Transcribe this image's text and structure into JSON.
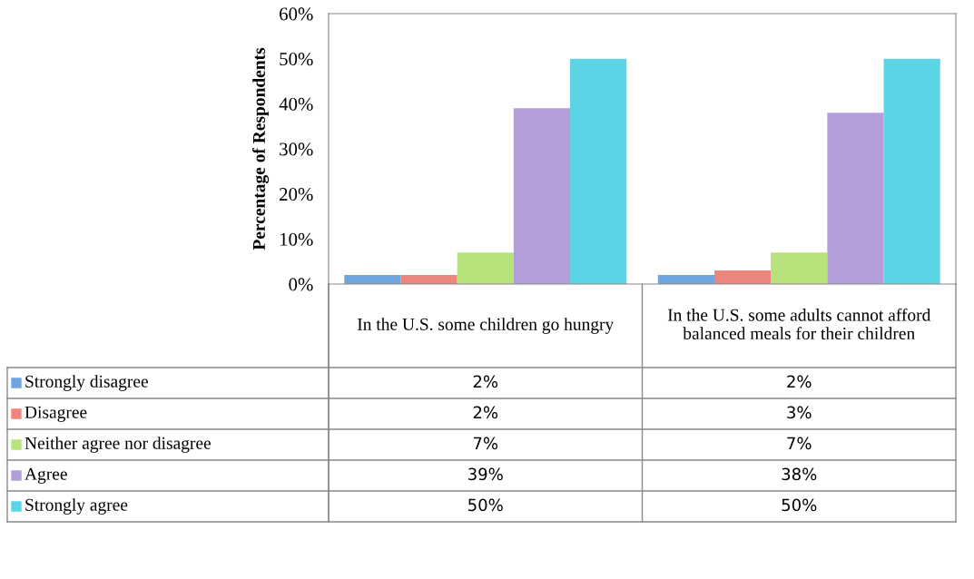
{
  "chart_data": {
    "type": "bar",
    "ylabel": "Percentage of Respondents",
    "categories": [
      "In the U.S. some children go hungry",
      "In the U.S. some adults cannot afford balanced meals for their children"
    ],
    "series": [
      {
        "name": "Strongly disagree",
        "color": "#6fa6e0",
        "values": [
          2,
          2
        ],
        "value_labels": [
          "2%",
          "2%"
        ]
      },
      {
        "name": "Disagree",
        "color": "#ec857c",
        "values": [
          2,
          3
        ],
        "value_labels": [
          "2%",
          "3%"
        ]
      },
      {
        "name": "Neither agree nor disagree",
        "color": "#b8e27c",
        "values": [
          7,
          7
        ],
        "value_labels": [
          "7%",
          "7%"
        ]
      },
      {
        "name": "Agree",
        "color": "#b49ed8",
        "values": [
          39,
          38
        ],
        "value_labels": [
          "39%",
          "38%"
        ]
      },
      {
        "name": "Strongly agree",
        "color": "#5dd3e6",
        "values": [
          50,
          50
        ],
        "value_labels": [
          "50%",
          "50%"
        ]
      }
    ],
    "ylim": [
      0,
      60
    ],
    "yticks": [
      {
        "value": 0,
        "label": "0%"
      },
      {
        "value": 10,
        "label": "10%"
      },
      {
        "value": 20,
        "label": "20%"
      },
      {
        "value": 30,
        "label": "30%"
      },
      {
        "value": 40,
        "label": "40%"
      },
      {
        "value": 50,
        "label": "50%"
      },
      {
        "value": 60,
        "label": "60%"
      }
    ],
    "grid": false,
    "legend": "bottom"
  }
}
